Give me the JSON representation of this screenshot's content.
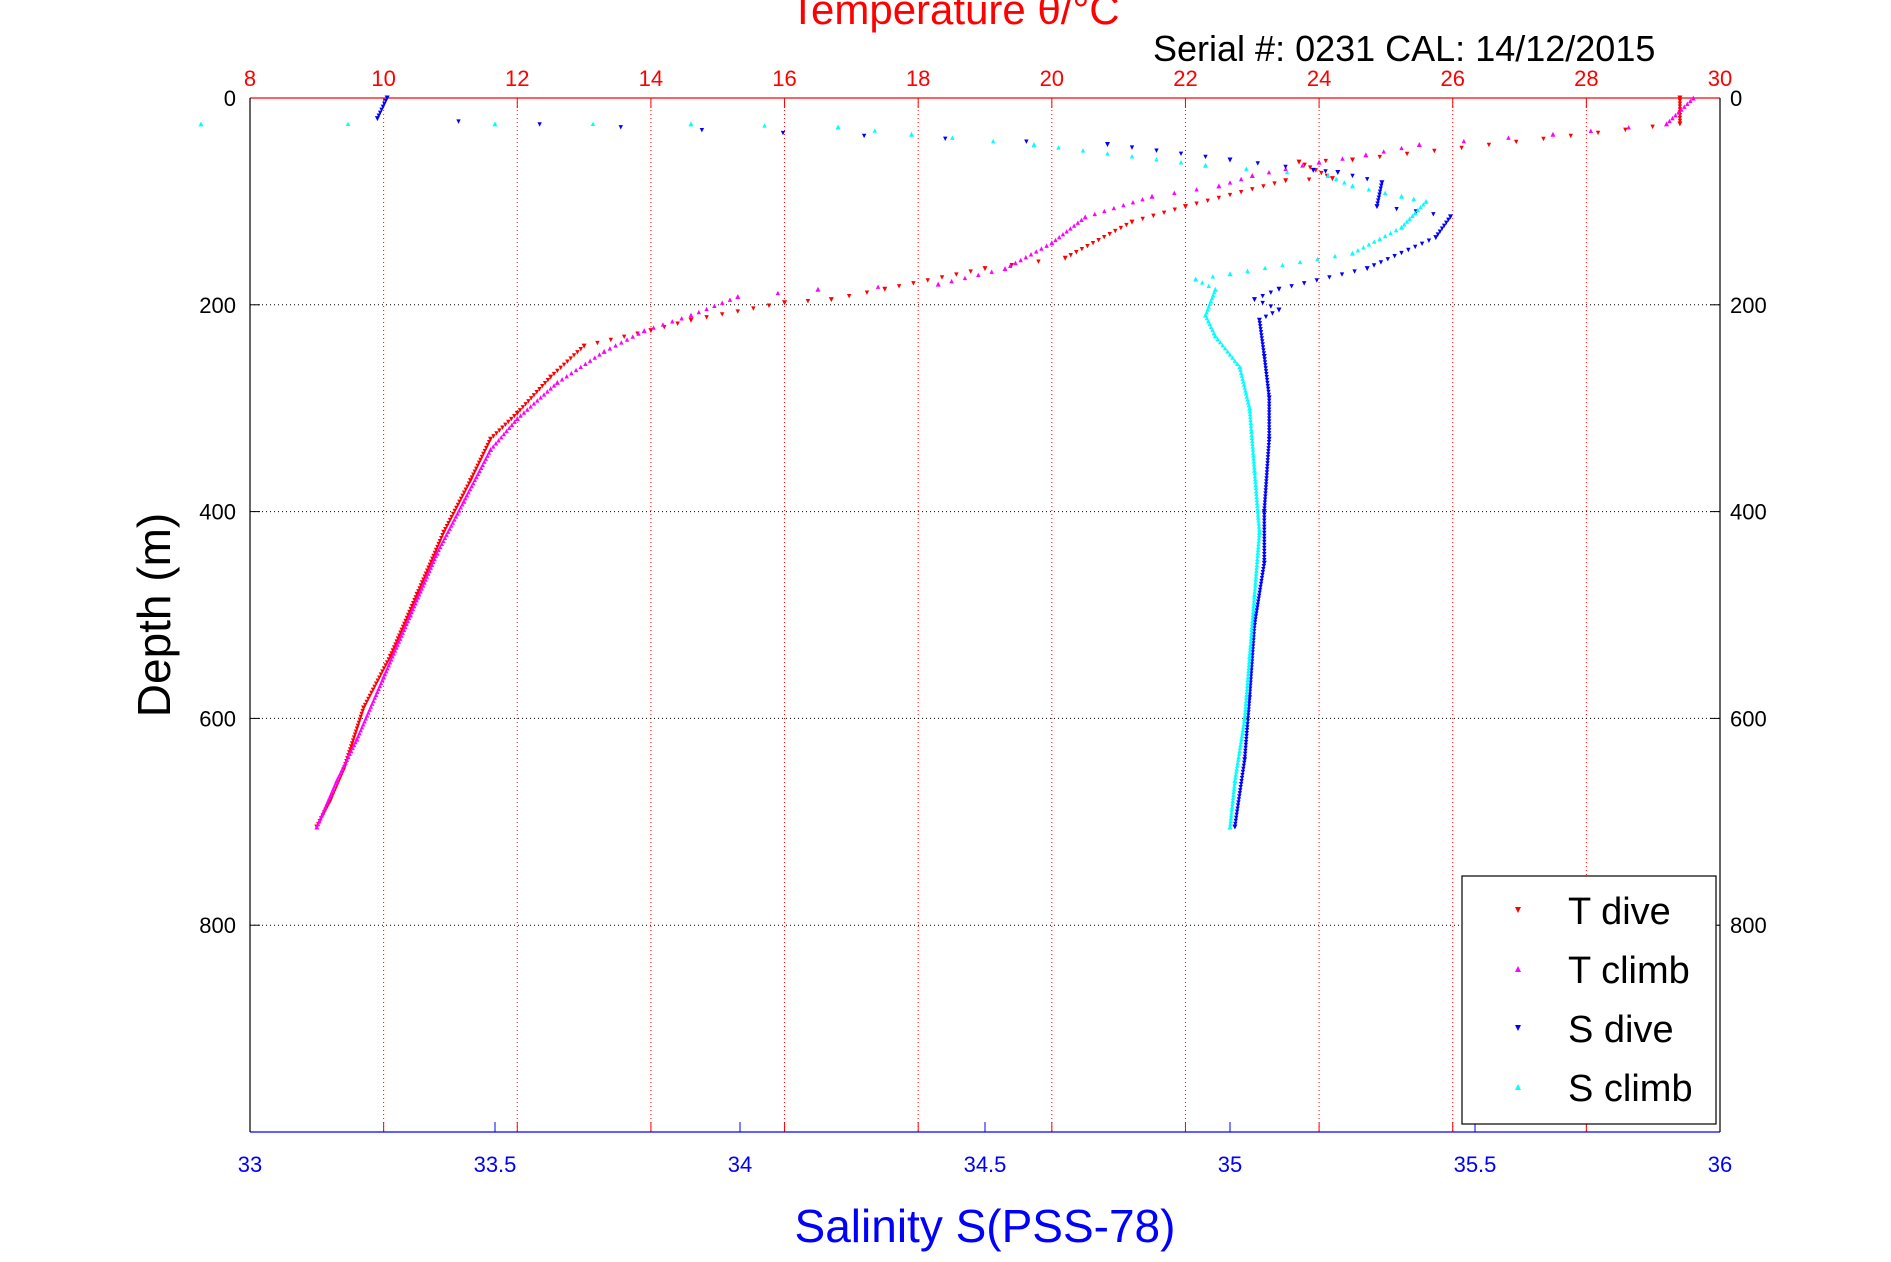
{
  "chart_data": {
    "type": "scatter",
    "title": "Temperature θ/°C",
    "subtitle": "Serial #: 0231  CAL: 14/12/2015",
    "ylabel": "Depth (m)",
    "xlabel_bottom": "Salinity S(PSS-78)",
    "x_top": {
      "label": "Temperature θ/°C",
      "range": [
        8,
        30
      ],
      "ticks": [
        "8",
        "10",
        "12",
        "14",
        "16",
        "18",
        "20",
        "22",
        "24",
        "26",
        "28",
        "30"
      ]
    },
    "x_bottom": {
      "label": "Salinity S(PSS-78)",
      "range": [
        33,
        36
      ],
      "ticks": [
        "33",
        "33.5",
        "34",
        "34.5",
        "35",
        "35.5",
        "36"
      ]
    },
    "y": {
      "range": [
        0,
        1000
      ],
      "reversed": true,
      "ticks": [
        "0",
        "200",
        "400",
        "600",
        "800"
      ]
    },
    "grid": true,
    "legend_position": "bottom-right",
    "colors": {
      "t_dive": "#ff0000",
      "t_climb": "#ff00ff",
      "s_dive": "#0000ff",
      "s_climb": "#00ffff",
      "temp_axis": "#ff0000",
      "sal_axis": "#0000ff"
    },
    "series": [
      {
        "name": "T dive",
        "axis": "temperature",
        "marker": "triangle-down",
        "points": [
          [
            29.4,
            0
          ],
          [
            29.4,
            25
          ],
          [
            24.5,
            60
          ],
          [
            23.7,
            62
          ],
          [
            24.2,
            78
          ],
          [
            23.5,
            80
          ],
          [
            22,
            105
          ],
          [
            21.2,
            120
          ],
          [
            20.2,
            155
          ],
          [
            19,
            165
          ],
          [
            17.5,
            185
          ],
          [
            16.7,
            195
          ],
          [
            16,
            198
          ],
          [
            14.6,
            215
          ],
          [
            14,
            225
          ],
          [
            13,
            240
          ],
          [
            12.5,
            270
          ],
          [
            12,
            305
          ],
          [
            11.6,
            330
          ],
          [
            11.3,
            370
          ],
          [
            10.9,
            420
          ],
          [
            10.5,
            480
          ],
          [
            10.1,
            540
          ],
          [
            9.7,
            590
          ],
          [
            9.4,
            650
          ],
          [
            9.2,
            680
          ],
          [
            9.0,
            705
          ]
        ]
      },
      {
        "name": "T climb",
        "axis": "temperature",
        "marker": "triangle-up",
        "points": [
          [
            29.6,
            0
          ],
          [
            29.2,
            25
          ],
          [
            27.5,
            35
          ],
          [
            25.5,
            45
          ],
          [
            24.7,
            55
          ],
          [
            24,
            62
          ],
          [
            23,
            75
          ],
          [
            22.5,
            85
          ],
          [
            21.5,
            95
          ],
          [
            20.5,
            115
          ],
          [
            20,
            140
          ],
          [
            19.3,
            165
          ],
          [
            18.3,
            180
          ],
          [
            16.5,
            185
          ],
          [
            15.3,
            192
          ],
          [
            14.6,
            210
          ],
          [
            13.9,
            225
          ],
          [
            13.3,
            245
          ],
          [
            12.6,
            275
          ],
          [
            12,
            310
          ],
          [
            11.6,
            340
          ],
          [
            11.2,
            390
          ],
          [
            10.8,
            440
          ],
          [
            10.4,
            500
          ],
          [
            10.0,
            560
          ],
          [
            9.6,
            620
          ],
          [
            9.3,
            660
          ],
          [
            9.0,
            705
          ]
        ]
      },
      {
        "name": "S dive",
        "axis": "salinity",
        "marker": "triangle-down",
        "points": [
          [
            33.28,
            0
          ],
          [
            33.26,
            20
          ],
          [
            34.75,
            45
          ],
          [
            35.0,
            60
          ],
          [
            35.17,
            70
          ],
          [
            35.22,
            72
          ],
          [
            35.31,
            82
          ],
          [
            35.3,
            105
          ],
          [
            35.38,
            110
          ],
          [
            35.45,
            115
          ],
          [
            35.42,
            135
          ],
          [
            35.28,
            165
          ],
          [
            35.1,
            185
          ],
          [
            35.05,
            195
          ],
          [
            35.1,
            205
          ],
          [
            35.06,
            215
          ],
          [
            35.07,
            250
          ],
          [
            35.08,
            290
          ],
          [
            35.08,
            330
          ],
          [
            35.07,
            400
          ],
          [
            35.07,
            450
          ],
          [
            35.05,
            510
          ],
          [
            35.04,
            580
          ],
          [
            35.03,
            640
          ],
          [
            35.01,
            705
          ]
        ]
      },
      {
        "name": "S climb",
        "axis": "salinity",
        "marker": "triangle-up",
        "points": [
          [
            32.9,
            25
          ],
          [
            33.5,
            25
          ],
          [
            33.9,
            25
          ],
          [
            34.2,
            28
          ],
          [
            34.35,
            35
          ],
          [
            34.6,
            45
          ],
          [
            34.95,
            65
          ],
          [
            35.2,
            75
          ],
          [
            35.25,
            85
          ],
          [
            35.35,
            95
          ],
          [
            35.4,
            100
          ],
          [
            35.35,
            125
          ],
          [
            35.25,
            150
          ],
          [
            35.0,
            170
          ],
          [
            34.93,
            175
          ],
          [
            34.97,
            185
          ],
          [
            34.95,
            210
          ],
          [
            34.97,
            230
          ],
          [
            35.02,
            260
          ],
          [
            35.04,
            300
          ],
          [
            35.05,
            360
          ],
          [
            35.06,
            420
          ],
          [
            35.05,
            480
          ],
          [
            35.04,
            540
          ],
          [
            35.03,
            600
          ],
          [
            35.01,
            660
          ],
          [
            35.0,
            705
          ]
        ]
      }
    ]
  }
}
